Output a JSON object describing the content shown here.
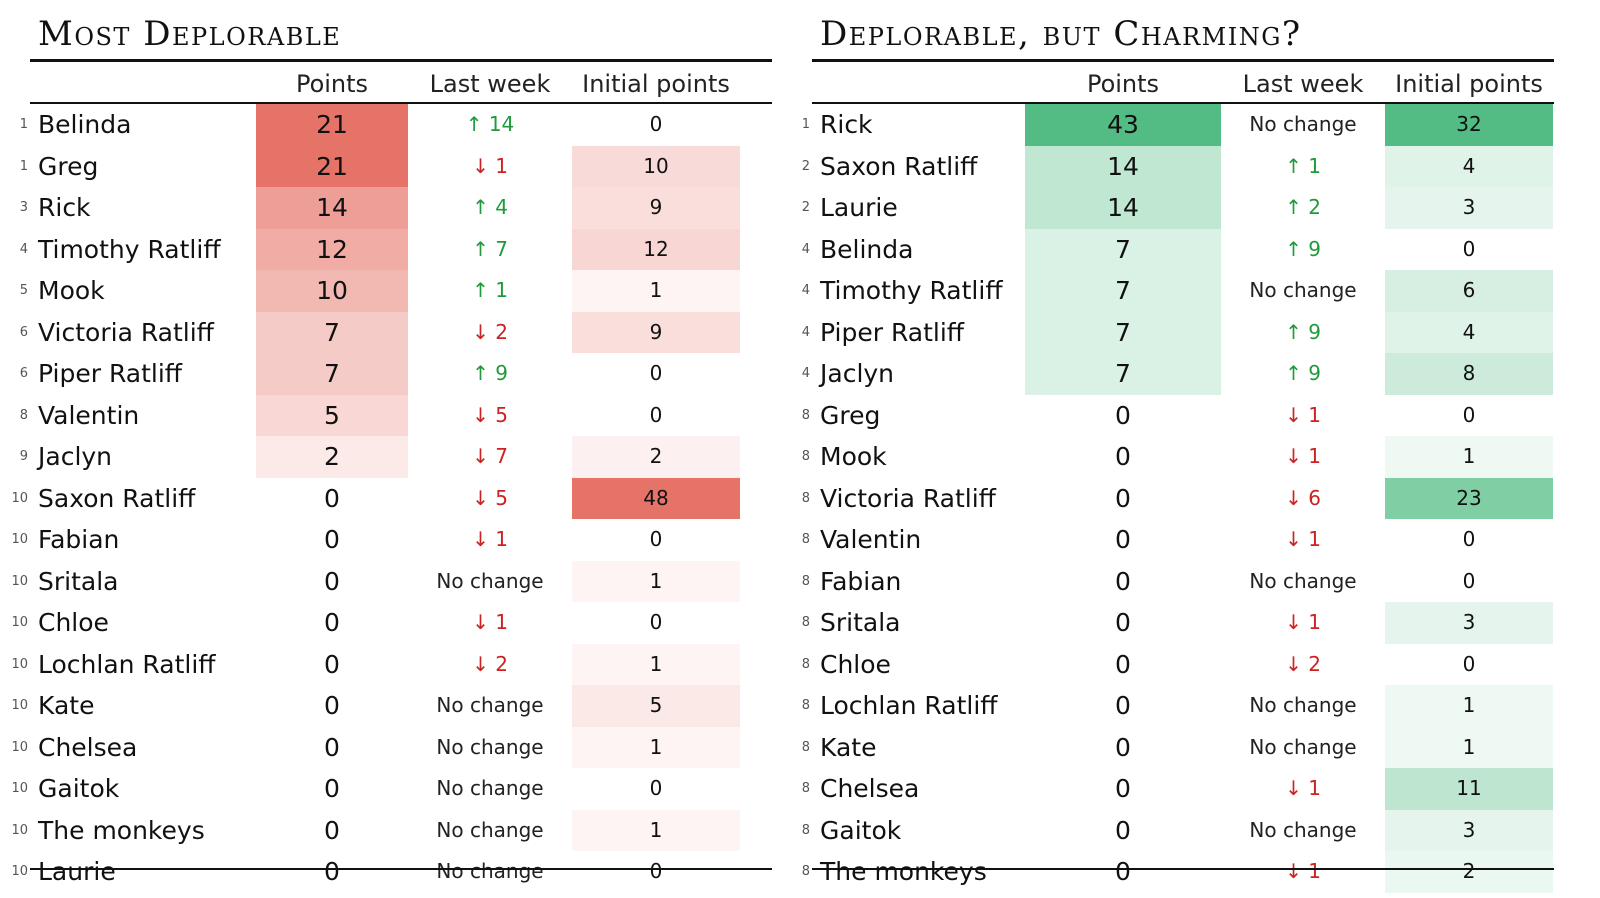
{
  "colors": {
    "negative_scale": "#e57368",
    "positive_scale": "#52bc84",
    "up": "#1f9a3c",
    "down": "#cc2222"
  },
  "headers": {
    "points": "Points",
    "last_week": "Last week",
    "initial_points": "Initial points"
  },
  "tables": [
    {
      "id": "left",
      "title": "Most Deplorable",
      "scale_color": "#e57368",
      "points_max": 21,
      "initial_max": 48,
      "rows": [
        {
          "rank": "1",
          "name": "Belinda",
          "points": 21,
          "last_week": "↑ 14",
          "trend": "up",
          "initial": 0
        },
        {
          "rank": "1",
          "name": "Greg",
          "points": 21,
          "last_week": "↓ 1",
          "trend": "down",
          "initial": 10
        },
        {
          "rank": "3",
          "name": "Rick",
          "points": 14,
          "last_week": "↑ 4",
          "trend": "up",
          "initial": 9
        },
        {
          "rank": "4",
          "name": "Timothy Ratliff",
          "points": 12,
          "last_week": "↑ 7",
          "trend": "up",
          "initial": 12
        },
        {
          "rank": "5",
          "name": "Mook",
          "points": 10,
          "last_week": "↑ 1",
          "trend": "up",
          "initial": 1
        },
        {
          "rank": "6",
          "name": "Victoria Ratliff",
          "points": 7,
          "last_week": "↓ 2",
          "trend": "down",
          "initial": 9
        },
        {
          "rank": "6",
          "name": "Piper Ratliff",
          "points": 7,
          "last_week": "↑ 9",
          "trend": "up",
          "initial": 0
        },
        {
          "rank": "8",
          "name": "Valentin",
          "points": 5,
          "last_week": "↓ 5",
          "trend": "down",
          "initial": 0
        },
        {
          "rank": "9",
          "name": "Jaclyn",
          "points": 2,
          "last_week": "↓ 7",
          "trend": "down",
          "initial": 2
        },
        {
          "rank": "10",
          "name": "Saxon Ratliff",
          "points": 0,
          "last_week": "↓ 5",
          "trend": "down",
          "initial": 48
        },
        {
          "rank": "10",
          "name": "Fabian",
          "points": 0,
          "last_week": "↓ 1",
          "trend": "down",
          "initial": 0
        },
        {
          "rank": "10",
          "name": "Sritala",
          "points": 0,
          "last_week": "No change",
          "trend": "same",
          "initial": 1
        },
        {
          "rank": "10",
          "name": "Chloe",
          "points": 0,
          "last_week": "↓ 1",
          "trend": "down",
          "initial": 0
        },
        {
          "rank": "10",
          "name": "Lochlan Ratliff",
          "points": 0,
          "last_week": "↓ 2",
          "trend": "down",
          "initial": 1
        },
        {
          "rank": "10",
          "name": "Kate",
          "points": 0,
          "last_week": "No change",
          "trend": "same",
          "initial": 5
        },
        {
          "rank": "10",
          "name": "Chelsea",
          "points": 0,
          "last_week": "No change",
          "trend": "same",
          "initial": 1
        },
        {
          "rank": "10",
          "name": "Gaitok",
          "points": 0,
          "last_week": "No change",
          "trend": "same",
          "initial": 0
        },
        {
          "rank": "10",
          "name": "The monkeys",
          "points": 0,
          "last_week": "No change",
          "trend": "same",
          "initial": 1
        },
        {
          "rank": "10",
          "name": "Laurie",
          "points": 0,
          "last_week": "No change",
          "trend": "same",
          "initial": 0
        }
      ]
    },
    {
      "id": "right",
      "title": "Deplorable, but Charming?",
      "scale_color": "#52bc84",
      "points_max": 43,
      "initial_max": 32,
      "rows": [
        {
          "rank": "1",
          "name": "Rick",
          "points": 43,
          "last_week": "No change",
          "trend": "same",
          "initial": 32
        },
        {
          "rank": "2",
          "name": "Saxon Ratliff",
          "points": 14,
          "last_week": "↑ 1",
          "trend": "up",
          "initial": 4
        },
        {
          "rank": "2",
          "name": "Laurie",
          "points": 14,
          "last_week": "↑ 2",
          "trend": "up",
          "initial": 3
        },
        {
          "rank": "4",
          "name": "Belinda",
          "points": 7,
          "last_week": "↑ 9",
          "trend": "up",
          "initial": 0
        },
        {
          "rank": "4",
          "name": "Timothy Ratliff",
          "points": 7,
          "last_week": "No change",
          "trend": "same",
          "initial": 6
        },
        {
          "rank": "4",
          "name": "Piper Ratliff",
          "points": 7,
          "last_week": "↑ 9",
          "trend": "up",
          "initial": 4
        },
        {
          "rank": "4",
          "name": "Jaclyn",
          "points": 7,
          "last_week": "↑ 9",
          "trend": "up",
          "initial": 8
        },
        {
          "rank": "8",
          "name": "Greg",
          "points": 0,
          "last_week": "↓ 1",
          "trend": "down",
          "initial": 0
        },
        {
          "rank": "8",
          "name": "Mook",
          "points": 0,
          "last_week": "↓ 1",
          "trend": "down",
          "initial": 1
        },
        {
          "rank": "8",
          "name": "Victoria Ratliff",
          "points": 0,
          "last_week": "↓ 6",
          "trend": "down",
          "initial": 23
        },
        {
          "rank": "8",
          "name": "Valentin",
          "points": 0,
          "last_week": "↓ 1",
          "trend": "down",
          "initial": 0
        },
        {
          "rank": "8",
          "name": "Fabian",
          "points": 0,
          "last_week": "No change",
          "trend": "same",
          "initial": 0
        },
        {
          "rank": "8",
          "name": "Sritala",
          "points": 0,
          "last_week": "↓ 1",
          "trend": "down",
          "initial": 3
        },
        {
          "rank": "8",
          "name": "Chloe",
          "points": 0,
          "last_week": "↓ 2",
          "trend": "down",
          "initial": 0
        },
        {
          "rank": "8",
          "name": "Lochlan Ratliff",
          "points": 0,
          "last_week": "No change",
          "trend": "same",
          "initial": 1
        },
        {
          "rank": "8",
          "name": "Kate",
          "points": 0,
          "last_week": "No change",
          "trend": "same",
          "initial": 1
        },
        {
          "rank": "8",
          "name": "Chelsea",
          "points": 0,
          "last_week": "↓ 1",
          "trend": "down",
          "initial": 11
        },
        {
          "rank": "8",
          "name": "Gaitok",
          "points": 0,
          "last_week": "No change",
          "trend": "same",
          "initial": 3
        },
        {
          "rank": "8",
          "name": "The monkeys",
          "points": 0,
          "last_week": "↓ 1",
          "trend": "down",
          "initial": 2
        }
      ]
    }
  ]
}
